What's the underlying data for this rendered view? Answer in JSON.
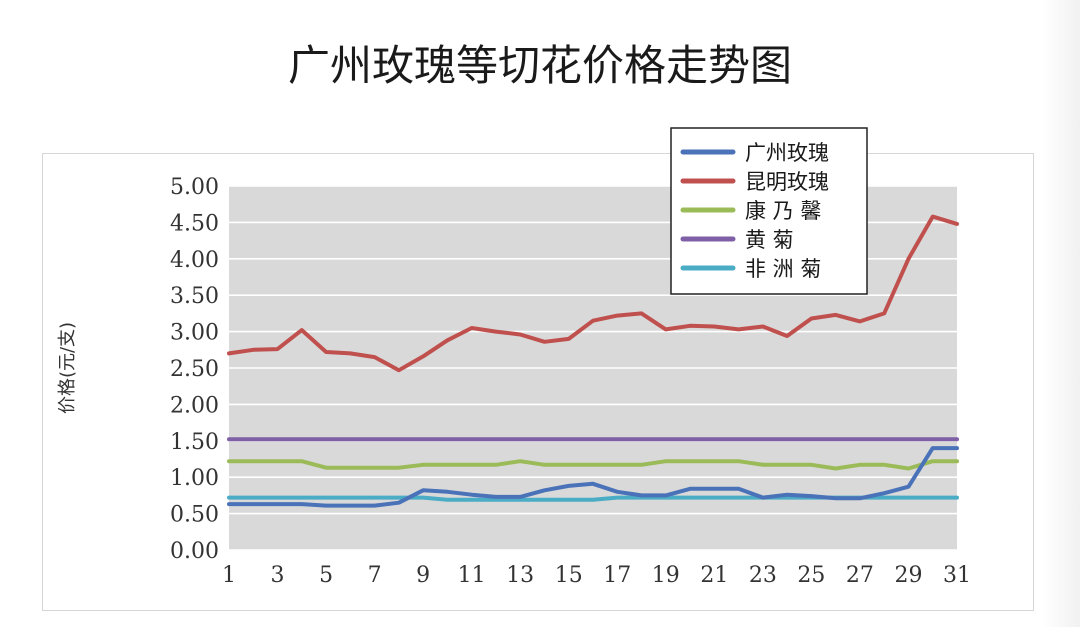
{
  "chart_data": {
    "type": "line",
    "title": "广州玫瑰等切花价格走势图",
    "ylabel": "价格(元/支)",
    "xlabel": "",
    "ylim": [
      0,
      5
    ],
    "y_ticks": [
      "0.00",
      "0.50",
      "1.00",
      "1.50",
      "2.00",
      "2.50",
      "3.00",
      "3.50",
      "4.00",
      "4.50",
      "5.00"
    ],
    "x": [
      1,
      2,
      3,
      4,
      5,
      6,
      7,
      8,
      9,
      10,
      11,
      12,
      13,
      14,
      15,
      16,
      17,
      18,
      19,
      20,
      21,
      22,
      23,
      24,
      25,
      26,
      27,
      28,
      29,
      30,
      31
    ],
    "x_ticks": [
      "1",
      "3",
      "5",
      "7",
      "9",
      "11",
      "13",
      "15",
      "17",
      "19",
      "21",
      "23",
      "25",
      "27",
      "29",
      "31"
    ],
    "grid": true,
    "legend_position": "top-right",
    "series": [
      {
        "name": "广州玫瑰",
        "color": "#4a72b8",
        "values": [
          0.63,
          0.63,
          0.63,
          0.63,
          0.61,
          0.61,
          0.61,
          0.65,
          0.82,
          0.8,
          0.76,
          0.73,
          0.73,
          0.82,
          0.88,
          0.91,
          0.8,
          0.75,
          0.75,
          0.84,
          0.84,
          0.84,
          0.72,
          0.76,
          0.74,
          0.71,
          0.71,
          0.78,
          0.87,
          1.4,
          1.4
        ]
      },
      {
        "name": "昆明玫瑰",
        "color": "#c0504d",
        "values": [
          2.7,
          2.75,
          2.76,
          3.02,
          2.72,
          2.7,
          2.65,
          2.47,
          2.66,
          2.88,
          3.05,
          3.0,
          2.96,
          2.86,
          2.9,
          3.15,
          3.22,
          3.25,
          3.03,
          3.08,
          3.07,
          3.03,
          3.07,
          2.94,
          3.18,
          3.23,
          3.14,
          3.25,
          4.0,
          4.58,
          4.48
        ]
      },
      {
        "name": "康 乃 馨",
        "color": "#9bbb59",
        "values": [
          1.22,
          1.22,
          1.22,
          1.22,
          1.13,
          1.13,
          1.13,
          1.13,
          1.17,
          1.17,
          1.17,
          1.17,
          1.22,
          1.17,
          1.17,
          1.17,
          1.17,
          1.17,
          1.22,
          1.22,
          1.22,
          1.22,
          1.17,
          1.17,
          1.17,
          1.12,
          1.17,
          1.17,
          1.12,
          1.22,
          1.22
        ]
      },
      {
        "name": "黄     菊",
        "color": "#7f5fa6",
        "values": [
          1.52,
          1.52,
          1.52,
          1.52,
          1.52,
          1.52,
          1.52,
          1.52,
          1.52,
          1.52,
          1.52,
          1.52,
          1.52,
          1.52,
          1.52,
          1.52,
          1.52,
          1.52,
          1.52,
          1.52,
          1.52,
          1.52,
          1.52,
          1.52,
          1.52,
          1.52,
          1.52,
          1.52,
          1.52,
          1.52,
          1.52
        ]
      },
      {
        "name": "非 洲 菊",
        "color": "#4bacc6",
        "values": [
          0.72,
          0.72,
          0.72,
          0.72,
          0.72,
          0.72,
          0.72,
          0.72,
          0.72,
          0.69,
          0.69,
          0.69,
          0.69,
          0.69,
          0.69,
          0.69,
          0.72,
          0.72,
          0.72,
          0.72,
          0.72,
          0.72,
          0.72,
          0.72,
          0.72,
          0.72,
          0.72,
          0.72,
          0.72,
          0.72,
          0.72
        ]
      }
    ]
  },
  "colors": {
    "plot_background": "#d9d9d9",
    "grid": "#ffffff",
    "axis_text": "#333333"
  }
}
